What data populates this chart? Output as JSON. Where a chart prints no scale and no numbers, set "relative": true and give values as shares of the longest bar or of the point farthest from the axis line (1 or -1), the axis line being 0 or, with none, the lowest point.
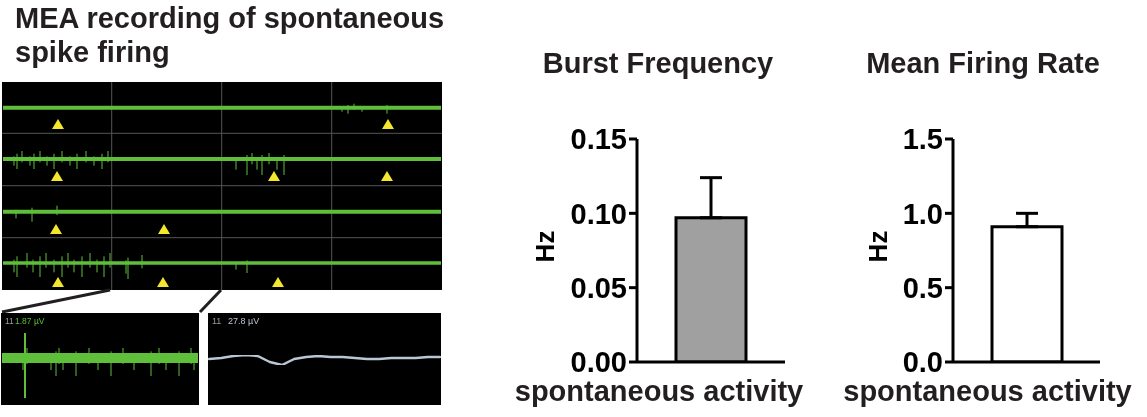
{
  "chart_data": [
    {
      "type": "other",
      "title": "MEA recording of spontaneous spike firing",
      "annotations": [
        "11",
        "1.87 µV"
      ]
    },
    {
      "type": "line",
      "relative": true,
      "categories": [
        null,
        null,
        null,
        null,
        null,
        null,
        null,
        null,
        null,
        null,
        null,
        null,
        null,
        null,
        null,
        null,
        null,
        null,
        null,
        null
      ],
      "values": [
        0.6,
        0.7,
        0.9,
        1,
        0.9,
        0.3,
        0,
        0.6,
        0.8,
        0.9,
        0.8,
        0.8,
        0.7,
        0.6,
        0.6,
        0.7,
        0.7,
        0.7,
        0.8,
        0.8
      ],
      "color": "#b9c6d3",
      "annotations": [
        "11",
        "27.8 µV"
      ]
    },
    {
      "type": "bar",
      "title": "Burst Frequency",
      "ylabel": "Hz",
      "categories": [
        "spontaneous activity"
      ],
      "values": [
        0.097
      ],
      "color": "#a0a0a0",
      "errors": [
        [
          0.097,
          0.124
        ]
      ],
      "ylim": [
        0,
        0.15
      ],
      "yticks": [
        {
          "value": 0,
          "label": "0.00"
        },
        0.05,
        {
          "value": 0.1,
          "label": "0.10"
        },
        0.15
      ]
    },
    {
      "type": "bar",
      "title": "Mean Firing Rate",
      "ylabel": "Hz",
      "categories": [
        "spontaneous activity"
      ],
      "values": [
        0.91
      ],
      "color": "#ffffff",
      "errors": [
        [
          0.91,
          1.0
        ]
      ],
      "ylim": [
        0,
        1.5
      ],
      "yticks": [
        {
          "value": 0,
          "label": "0.0"
        },
        0.5,
        {
          "value": 1,
          "label": "1.0"
        },
        1.5
      ]
    }
  ]
}
